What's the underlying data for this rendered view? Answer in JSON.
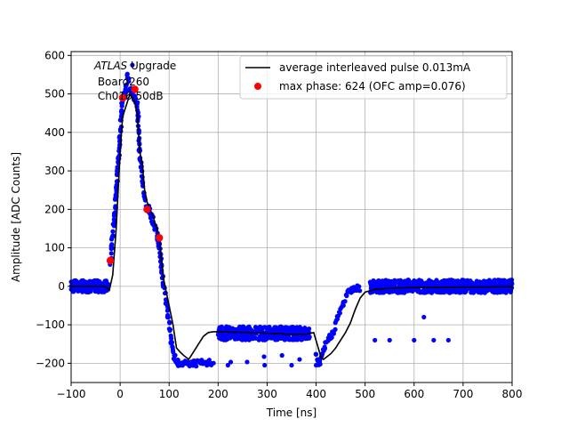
{
  "chart_data": {
    "type": "scatter",
    "title": "",
    "xlabel": "Time [ns]",
    "ylabel": "Amplitude [ADC Counts]",
    "xlim": [
      -100,
      800
    ],
    "ylim": [
      -250,
      610
    ],
    "xticks": [
      -100,
      0,
      100,
      200,
      300,
      400,
      500,
      600,
      700,
      800
    ],
    "xtick_labels": [
      "−100",
      "0",
      "100",
      "200",
      "300",
      "400",
      "500",
      "600",
      "700",
      "800"
    ],
    "yticks": [
      -200,
      -100,
      0,
      100,
      200,
      300,
      400,
      500,
      600
    ],
    "ytick_labels": [
      "−200",
      "−100",
      "0",
      "100",
      "200",
      "300",
      "400",
      "500",
      "600"
    ],
    "grid": true,
    "legend_position": "top-right",
    "annotation": {
      "atlas_italic": "ATLAS",
      "line1_rest": " Upgrade",
      "line2": " Board260",
      "line3": " Ch016 50dB"
    },
    "colors": {
      "samples": "#0000ff",
      "average": "#000000",
      "max_phase": "#ff0000",
      "grid": "#b0b0b0"
    },
    "series": [
      {
        "name": "average interleaved pulse 0.013mA",
        "kind": "line",
        "x": [
          -100,
          -30,
          -22,
          -15,
          -8,
          0,
          5,
          10,
          15,
          20,
          25,
          30,
          35,
          40,
          45,
          50,
          55,
          60,
          65,
          70,
          75,
          80,
          85,
          90,
          95,
          100,
          108,
          115,
          122,
          130,
          140,
          150,
          160,
          170,
          180,
          190,
          200,
          250,
          300,
          350,
          380,
          395,
          402,
          410,
          415,
          420,
          430,
          440,
          450,
          460,
          470,
          480,
          490,
          500,
          520,
          550,
          600,
          700,
          800
        ],
        "y": [
          0,
          0,
          -10,
          30,
          150,
          350,
          440,
          460,
          480,
          500,
          490,
          480,
          450,
          350,
          320,
          250,
          220,
          200,
          190,
          170,
          150,
          125,
          60,
          10,
          -20,
          -50,
          -100,
          -160,
          -170,
          -180,
          -190,
          -170,
          -150,
          -130,
          -120,
          -118,
          -118,
          -120,
          -122,
          -125,
          -125,
          -120,
          -150,
          -185,
          -190,
          -185,
          -175,
          -160,
          -140,
          -120,
          -95,
          -60,
          -30,
          -15,
          -8,
          -5,
          -3,
          -2,
          -1
        ]
      },
      {
        "name": "max phase: 624 (OFC amp=0.076)",
        "kind": "points",
        "x": [
          -20,
          5,
          30,
          55,
          80
        ],
        "y": [
          67,
          490,
          512,
          200,
          126
        ]
      },
      {
        "name": "samples",
        "kind": "points",
        "bands": [
          {
            "x0": -100,
            "x1": -25,
            "ycenter": 0,
            "spread": 22
          },
          {
            "x0": 200,
            "x1": 385,
            "ycenter": -122,
            "spread": 25
          },
          {
            "x0": 510,
            "x1": 800,
            "ycenter": 0,
            "spread": 24
          }
        ],
        "steep": {
          "x": [
            -20,
            -10,
            0,
            5,
            10,
            15,
            20,
            25,
            30,
            35,
            40,
            45,
            50,
            55,
            60,
            65,
            70,
            75,
            80,
            85,
            90,
            95,
            100,
            105,
            110,
            115,
            120,
            125,
            130,
            140,
            150,
            160,
            170,
            180,
            190,
            400,
            405,
            410,
            420,
            430,
            440,
            450,
            460,
            470,
            480,
            490
          ],
          "y": [
            60,
            200,
            400,
            480,
            500,
            550,
            510,
            500,
            490,
            470,
            350,
            280,
            230,
            200,
            200,
            180,
            160,
            130,
            110,
            40,
            0,
            -50,
            -100,
            -150,
            -180,
            -190,
            -200,
            -200,
            -200,
            -200,
            -200,
            -200,
            -200,
            -200,
            -200,
            -180,
            -200,
            -190,
            -150,
            -130,
            -100,
            -60,
            -30,
            -10,
            -5,
            -3
          ]
        },
        "outliers": {
          "x": [
            25,
            220,
            295,
            350,
            400,
            520,
            550,
            600,
            620,
            640,
            670
          ],
          "y": [
            575,
            -205,
            -205,
            -205,
            -205,
            -140,
            -140,
            -140,
            -80,
            -140,
            -140
          ]
        }
      }
    ]
  }
}
